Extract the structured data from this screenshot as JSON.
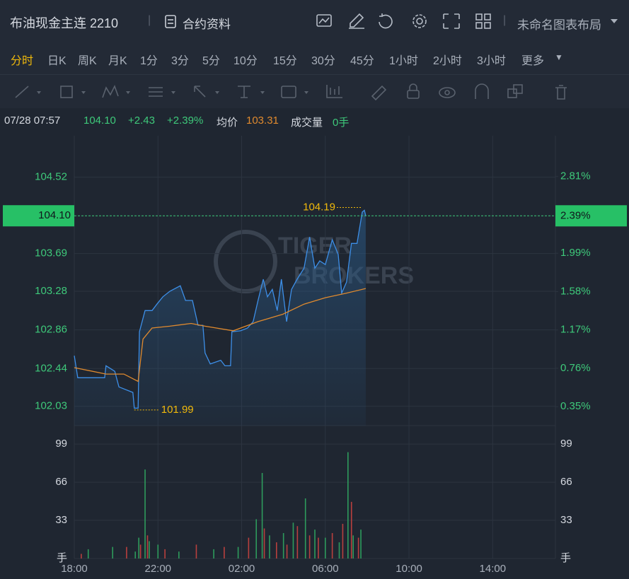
{
  "header": {
    "title": "布油现金主连 2210",
    "info_button": "合约资料",
    "layout": "未命名图表布局"
  },
  "periods": {
    "items": [
      "分时",
      "日K",
      "周K",
      "月K",
      "1分",
      "3分",
      "5分",
      "10分",
      "15分",
      "30分",
      "45分",
      "1小时",
      "2小时",
      "3小时",
      "更多"
    ],
    "active": 0
  },
  "quote": {
    "time": "07/28 07:57",
    "price": "104.10",
    "change": "+2.43",
    "change_pct": "+2.39%",
    "avg_label": "均价",
    "avg": "103.31",
    "volume_label": "成交量",
    "volume": "0手"
  },
  "watermark": [
    "TIGER",
    "BROKERS"
  ],
  "chart_data": [
    {
      "type": "line",
      "xlim": [
        0,
        1380
      ],
      "xticks": [
        {
          "value": 0,
          "label": "18:00"
        },
        {
          "value": 240,
          "label": "22:00"
        },
        {
          "value": 480,
          "label": "02:00"
        },
        {
          "value": 720,
          "label": "06:00"
        },
        {
          "value": 960,
          "label": "10:00"
        },
        {
          "value": 1200,
          "label": "14:00"
        }
      ],
      "ylim": [
        101.82,
        104.97
      ],
      "yticks": [
        104.52,
        103.69,
        103.28,
        102.86,
        102.44,
        102.03
      ],
      "y2lim": [
        0.148,
        3.246
      ],
      "y2ticks": [
        {
          "value": 2.81,
          "label": "2.81%"
        },
        {
          "value": 1.99,
          "label": "1.99%"
        },
        {
          "value": 1.58,
          "label": "1.58%"
        },
        {
          "value": 1.17,
          "label": "1.17%"
        },
        {
          "value": 0.76,
          "label": "0.76%"
        },
        {
          "value": 0.35,
          "label": "0.35%"
        }
      ],
      "grid": true,
      "series": [
        {
          "color": "#3d8fe8",
          "x": [
            0,
            10,
            87,
            91,
            116,
            128,
            168,
            172,
            183,
            187,
            203,
            223,
            237,
            254,
            274,
            304,
            319,
            339,
            355,
            369,
            375,
            390,
            420,
            432,
            448,
            452,
            477,
            497,
            513,
            527,
            542,
            554,
            568,
            582,
            594,
            609,
            623,
            639,
            659,
            675,
            690,
            704,
            720,
            740,
            757,
            767,
            781,
            795,
            811,
            826,
            832,
            836
          ],
          "values": [
            102.58,
            102.34,
            102.34,
            102.47,
            102.41,
            102.24,
            102.18,
            102.01,
            102.01,
            102.84,
            103.07,
            103.07,
            103.14,
            103.22,
            103.28,
            103.34,
            103.18,
            103.18,
            102.91,
            102.91,
            102.61,
            102.49,
            102.53,
            102.47,
            102.47,
            102.84,
            102.85,
            102.88,
            102.95,
            103.18,
            103.41,
            103.22,
            103.3,
            103.07,
            103.41,
            102.95,
            103.3,
            103.41,
            103.53,
            103.87,
            103.53,
            103.61,
            103.57,
            103.84,
            103.68,
            103.26,
            103.38,
            103.8,
            103.8,
            104.14,
            104.16,
            104.1
          ]
        },
        {
          "color": "#e08a2e",
          "x": [
            0,
            91,
            142,
            183,
            197,
            223,
            274,
            335,
            375,
            456,
            527,
            598,
            659,
            720,
            781,
            836
          ],
          "values": [
            102.45,
            102.38,
            102.38,
            102.3,
            102.76,
            102.88,
            102.9,
            102.93,
            102.9,
            102.85,
            102.95,
            103.03,
            103.14,
            103.21,
            103.26,
            103.31
          ]
        }
      ],
      "annotations": [
        {
          "x": 826,
          "value": 104.19
        },
        {
          "x": 172,
          "value": 101.99
        }
      ],
      "current": {
        "value": 104.1,
        "label": "104.10",
        "pct": {
          "value": 2.39,
          "label": "2.39%"
        }
      }
    },
    {
      "type": "bar",
      "xlim": [
        0,
        1380
      ],
      "ylim": [
        0,
        115
      ],
      "yticks": [
        99,
        66,
        33,
        {
          "value": 0,
          "label": "手"
        }
      ],
      "series": [
        {
          "color": "#2e9b5c",
          "x": [
            40,
            110,
            175,
            185,
            203,
            215,
            240,
            300,
            400,
            470,
            522,
            539,
            560,
            600,
            628,
            663,
            690,
            720,
            760,
            785,
            800,
            822
          ],
          "values": [
            8,
            10,
            6,
            18,
            77,
            15,
            12,
            6,
            8,
            10,
            34,
            74,
            20,
            22,
            31,
            52,
            25,
            18,
            14,
            92,
            20,
            25
          ]
        },
        {
          "color": "#b8403e",
          "x": [
            20,
            150,
            190,
            210,
            260,
            350,
            430,
            500,
            545,
            580,
            610,
            640,
            675,
            700,
            740,
            770,
            795,
            815
          ],
          "values": [
            4,
            10,
            12,
            20,
            8,
            12,
            10,
            18,
            26,
            14,
            12,
            28,
            20,
            18,
            22,
            30,
            49,
            18
          ]
        }
      ]
    }
  ]
}
